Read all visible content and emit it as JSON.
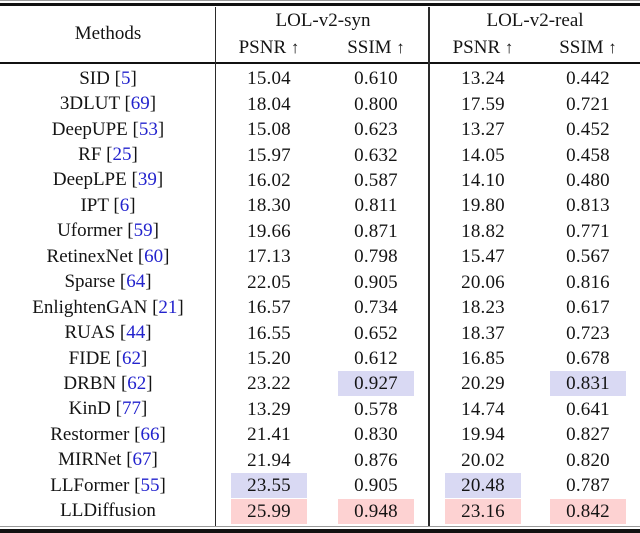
{
  "table": {
    "methods_header": "Methods",
    "arrow": "↑",
    "groups": [
      {
        "title": "LOL-v2-syn",
        "metrics": [
          "PSNR",
          "SSIM"
        ]
      },
      {
        "title": "LOL-v2-real",
        "metrics": [
          "PSNR",
          "SSIM"
        ]
      }
    ],
    "colors": {
      "highlight_second_best_blue": "#d9d9f3",
      "highlight_best_pink": "#fdd2d2",
      "citation_blue": "#2323cd",
      "text": "#141414"
    },
    "columns": [
      "psnr-syn",
      "ssim-syn",
      "psnr-real",
      "ssim-real"
    ],
    "rows": [
      {
        "method": "SID",
        "cite": "5",
        "values": [
          "15.04",
          "0.610",
          "13.24",
          "0.442"
        ],
        "hl": [
          "",
          "",
          "",
          ""
        ]
      },
      {
        "method": "3DLUT",
        "cite": "69",
        "values": [
          "18.04",
          "0.800",
          "17.59",
          "0.721"
        ],
        "hl": [
          "",
          "",
          "",
          ""
        ]
      },
      {
        "method": "DeepUPE",
        "cite": "53",
        "values": [
          "15.08",
          "0.623",
          "13.27",
          "0.452"
        ],
        "hl": [
          "",
          "",
          "",
          ""
        ]
      },
      {
        "method": "RF",
        "cite": "25",
        "values": [
          "15.97",
          "0.632",
          "14.05",
          "0.458"
        ],
        "hl": [
          "",
          "",
          "",
          ""
        ]
      },
      {
        "method": "DeepLPE",
        "cite": "39",
        "values": [
          "16.02",
          "0.587",
          "14.10",
          "0.480"
        ],
        "hl": [
          "",
          "",
          "",
          ""
        ]
      },
      {
        "method": "IPT",
        "cite": "6",
        "values": [
          "18.30",
          "0.811",
          "19.80",
          "0.813"
        ],
        "hl": [
          "",
          "",
          "",
          ""
        ]
      },
      {
        "method": "Uformer",
        "cite": "59",
        "values": [
          "19.66",
          "0.871",
          "18.82",
          "0.771"
        ],
        "hl": [
          "",
          "",
          "",
          ""
        ]
      },
      {
        "method": "RetinexNet",
        "cite": "60",
        "values": [
          "17.13",
          "0.798",
          "15.47",
          "0.567"
        ],
        "hl": [
          "",
          "",
          "",
          ""
        ]
      },
      {
        "method": "Sparse",
        "cite": "64",
        "values": [
          "22.05",
          "0.905",
          "20.06",
          "0.816"
        ],
        "hl": [
          "",
          "",
          "",
          ""
        ]
      },
      {
        "method": "EnlightenGAN",
        "cite": "21",
        "values": [
          "16.57",
          "0.734",
          "18.23",
          "0.617"
        ],
        "hl": [
          "",
          "",
          "",
          ""
        ]
      },
      {
        "method": "RUAS",
        "cite": "44",
        "values": [
          "16.55",
          "0.652",
          "18.37",
          "0.723"
        ],
        "hl": [
          "",
          "",
          "",
          ""
        ]
      },
      {
        "method": "FIDE",
        "cite": "62",
        "values": [
          "15.20",
          "0.612",
          "16.85",
          "0.678"
        ],
        "hl": [
          "",
          "",
          "",
          ""
        ]
      },
      {
        "method": "DRBN",
        "cite": "62",
        "values": [
          "23.22",
          "0.927",
          "20.29",
          "0.831"
        ],
        "hl": [
          "",
          "blue",
          "",
          "blue"
        ]
      },
      {
        "method": "KinD",
        "cite": "77",
        "values": [
          "13.29",
          "0.578",
          "14.74",
          "0.641"
        ],
        "hl": [
          "",
          "",
          "",
          ""
        ]
      },
      {
        "method": "Restormer",
        "cite": "66",
        "values": [
          "21.41",
          "0.830",
          "19.94",
          "0.827"
        ],
        "hl": [
          "",
          "",
          "",
          ""
        ]
      },
      {
        "method": "MIRNet",
        "cite": "67",
        "values": [
          "21.94",
          "0.876",
          "20.02",
          "0.820"
        ],
        "hl": [
          "",
          "",
          "",
          ""
        ]
      },
      {
        "method": "LLFormer",
        "cite": "55",
        "values": [
          "23.55",
          "0.905",
          "20.48",
          "0.787"
        ],
        "hl": [
          "blue",
          "",
          "blue",
          ""
        ]
      },
      {
        "method": "LLDiffusion",
        "cite": null,
        "values": [
          "25.99",
          "0.948",
          "23.16",
          "0.842"
        ],
        "hl": [
          "red",
          "red",
          "red",
          "red"
        ]
      }
    ]
  }
}
